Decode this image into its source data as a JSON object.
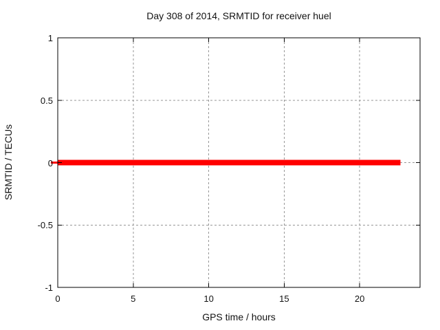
{
  "title": "Day 308 of 2014, SRMTID for receiver huel",
  "chart_data": {
    "type": "line",
    "title": "Day 308 of 2014, SRMTID for receiver huel",
    "xlabel": "GPS time / hours",
    "ylabel": "SRMTID / TECUs",
    "xlim": [
      0,
      24
    ],
    "ylim": [
      -1,
      1
    ],
    "xticks": [
      {
        "v": 0,
        "label": "0"
      },
      {
        "v": 5,
        "label": "5"
      },
      {
        "v": 10,
        "label": "10"
      },
      {
        "v": 15,
        "label": "15"
      },
      {
        "v": 20,
        "label": "20"
      }
    ],
    "yticks": [
      {
        "v": -1,
        "label": "-1"
      },
      {
        "v": -0.5,
        "label": "-0.5"
      },
      {
        "v": 0,
        "label": "0"
      },
      {
        "v": 0.5,
        "label": "0.5"
      },
      {
        "v": 1,
        "label": "1"
      }
    ],
    "grid": true,
    "legend": "off",
    "series": [
      {
        "name": "SRMTID",
        "color": "#ff0000",
        "x": [
          0,
          22.7
        ],
        "y": [
          0,
          0
        ],
        "lead_artifact": true
      }
    ]
  },
  "colors": {
    "background": "#ffffff",
    "border": "#000000",
    "grid": "#969696",
    "text": "#111111",
    "line": "#ff0000"
  }
}
